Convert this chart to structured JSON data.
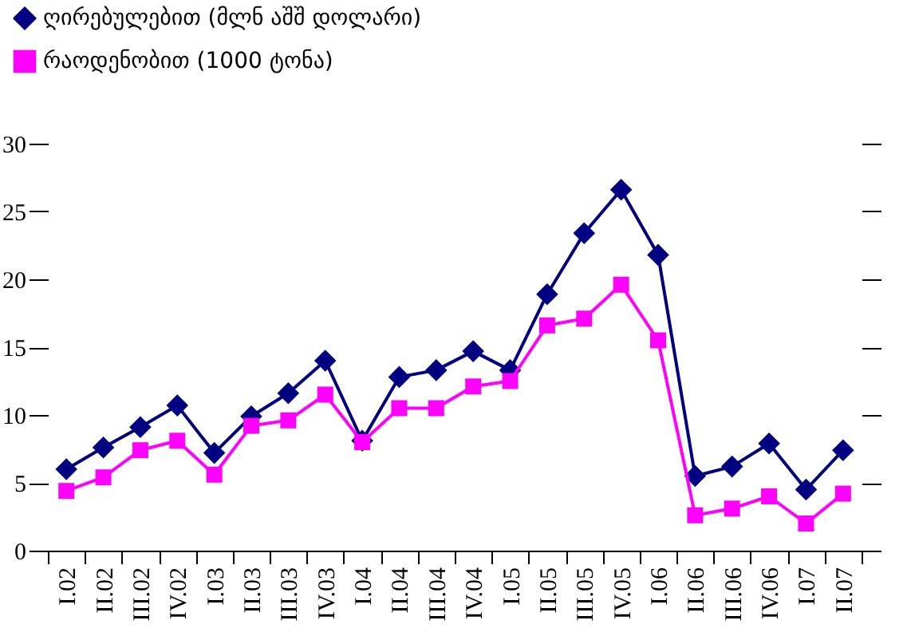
{
  "chart_data": {
    "type": "line",
    "categories": [
      "I.02",
      "II.02",
      "III.02",
      "IV.02",
      "I.03",
      "II.03",
      "III.03",
      "IV.03",
      "I.04",
      "II.04",
      "III.04",
      "IV.04",
      "I.05",
      "II.05",
      "III.05",
      "IV.05",
      "I.06",
      "II.06",
      "III.06",
      "IV.06",
      "I.07",
      "II.07"
    ],
    "series": [
      {
        "name": "ღირებულებით (მლნ აშშ დოლარი)",
        "color": "#000080",
        "marker": "diamond",
        "values": [
          6.0,
          7.6,
          9.1,
          10.7,
          7.2,
          9.9,
          11.6,
          14.0,
          8.1,
          12.8,
          13.3,
          14.7,
          13.3,
          18.9,
          23.4,
          26.6,
          21.8,
          5.5,
          6.2,
          7.9,
          4.5,
          7.4
        ]
      },
      {
        "name": "რაოდენობით (1000 ტონა)",
        "color": "#ff00ff",
        "marker": "square",
        "values": [
          4.4,
          5.4,
          7.4,
          8.1,
          5.6,
          9.2,
          9.6,
          11.5,
          8.0,
          10.5,
          10.5,
          12.1,
          12.5,
          16.6,
          17.1,
          19.6,
          15.5,
          2.6,
          3.1,
          4.0,
          2.0,
          4.2
        ]
      }
    ],
    "ylim": [
      0,
      30
    ],
    "yticks": [
      0,
      5,
      10,
      15,
      20,
      25,
      30
    ],
    "grid": false,
    "legend": "top left",
    "line_style": "solid"
  }
}
